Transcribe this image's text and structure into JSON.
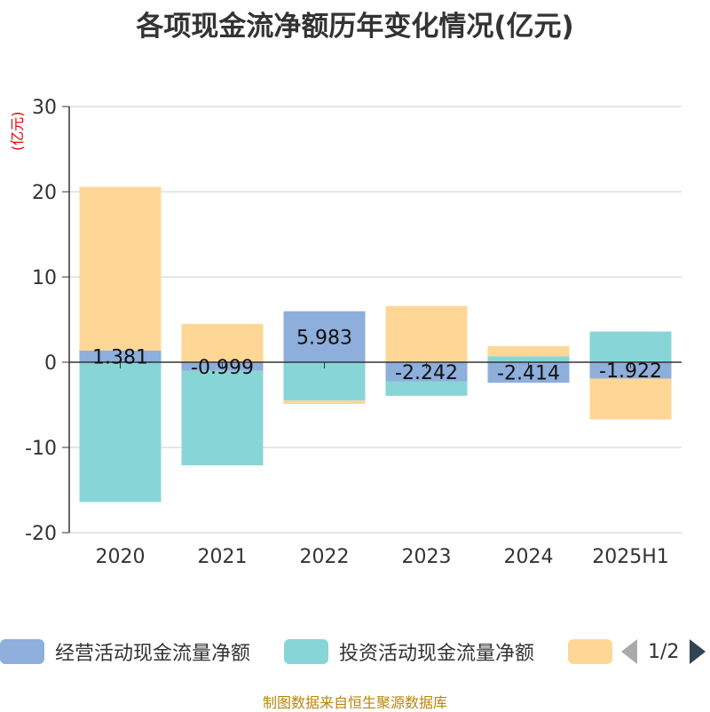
{
  "chart_data": {
    "type": "bar",
    "stacked": true,
    "title": "各项现金流净额历年变化情况(亿元)",
    "ylabel": "(亿元)",
    "ylim": [
      -20,
      30
    ],
    "yticks": [
      -20,
      -10,
      0,
      10,
      20,
      30
    ],
    "grid": true,
    "legend_position": "bottom",
    "categories": [
      "2020",
      "2021",
      "2022",
      "2023",
      "2024",
      "2025H1"
    ],
    "series": [
      {
        "name": "经营活动现金流量净额",
        "color": "#8eaedb",
        "values": [
          1.381,
          -0.999,
          5.983,
          -2.242,
          -2.414,
          -1.922
        ],
        "show_labels": true
      },
      {
        "name": "投资活动现金流量净额",
        "color": "#88d5d8",
        "values": [
          -16.4,
          -11.1,
          -4.5,
          -1.7,
          0.7,
          3.6
        ],
        "show_labels": false
      },
      {
        "name": "",
        "color": "#fed797",
        "values": [
          19.2,
          4.5,
          -0.4,
          6.6,
          1.2,
          -4.8
        ],
        "show_labels": false
      }
    ]
  },
  "legend": {
    "items": [
      {
        "label": "经营活动现金流量净额",
        "color": "#8eaedb"
      },
      {
        "label": "投资活动现金流量净额",
        "color": "#88d5d8"
      },
      {
        "label": "",
        "color": "#fed797"
      }
    ],
    "page_indicator": "1/2"
  },
  "source_text": "制图数据来自恒生聚源数据库"
}
